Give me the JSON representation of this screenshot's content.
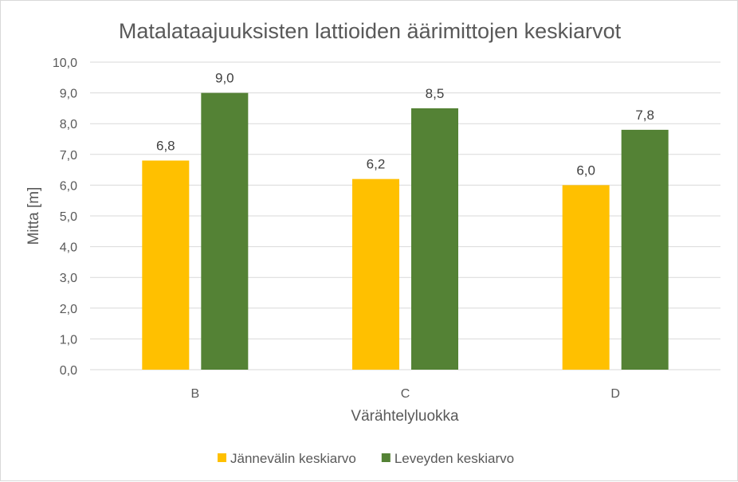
{
  "chart_data": {
    "type": "bar",
    "title": "Matalataajuuksisten lattioiden äärimittojen keskiarvot",
    "xlabel": "Värähtelyluokka",
    "ylabel": "Mitta [m]",
    "categories": [
      "B",
      "C",
      "D"
    ],
    "series": [
      {
        "name": "Jännevälin keskiarvo",
        "values": [
          6.8,
          6.2,
          6.0
        ],
        "labels": [
          "6,8",
          "6,2",
          "6,0"
        ],
        "color": "#FFC000"
      },
      {
        "name": "Leveyden keskiarvo",
        "values": [
          9.0,
          8.5,
          7.8
        ],
        "labels": [
          "9,0",
          "8,5",
          "7,8"
        ],
        "color": "#548235"
      }
    ],
    "ylim": [
      0,
      10
    ],
    "yticks": [
      "0,0",
      "1,0",
      "2,0",
      "3,0",
      "4,0",
      "5,0",
      "6,0",
      "7,0",
      "8,0",
      "9,0",
      "10,0"
    ],
    "grid": true,
    "gridColor": "#d9d9d9",
    "legend": "bottom"
  }
}
